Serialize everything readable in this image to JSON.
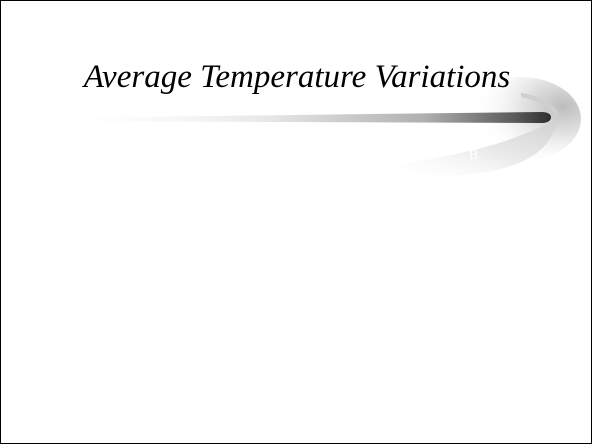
{
  "slide": {
    "title": "Average Temperature Variations",
    "faint_text": "B",
    "colors": {
      "background": "#ffffff",
      "title": "#000000",
      "border": "#000000",
      "swoosh_dark": "#3a3a3a",
      "swoosh_light": "#ffffff"
    }
  }
}
